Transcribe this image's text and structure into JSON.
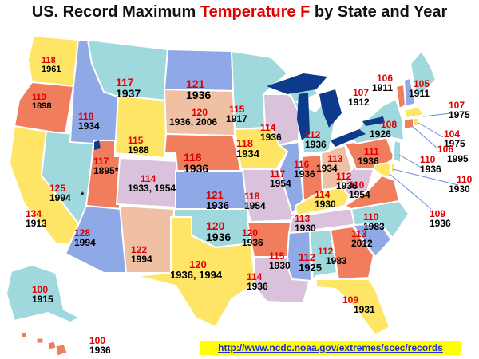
{
  "title": {
    "before": "US. Record Maximum ",
    "highlight": "Temperature F",
    "after": " by State and Year"
  },
  "url": "http://www.ncdc.noaa.gov/extremes/scec/records",
  "colors": {
    "title_highlight": "#e00000",
    "temp": "#e00000",
    "year": "#000000",
    "water": "#0d3a8a",
    "link_bg": "#ffff00",
    "link_text": "#1a2fd8"
  },
  "states": [
    {
      "id": "WA",
      "temp": "118",
      "year": "1961"
    },
    {
      "id": "OR",
      "temp": "119",
      "year": "1898"
    },
    {
      "id": "CA",
      "temp": "134",
      "year": "1913"
    },
    {
      "id": "NV",
      "temp": "125",
      "year": "1994"
    },
    {
      "id": "ID",
      "temp": "118",
      "year": "1934"
    },
    {
      "id": "MT",
      "temp": "117",
      "year": "1937"
    },
    {
      "id": "WY",
      "temp": "115",
      "year": "1988"
    },
    {
      "id": "UT",
      "temp": "117",
      "year": "1895*"
    },
    {
      "id": "AZ",
      "temp": "128",
      "year": "1994"
    },
    {
      "id": "CO",
      "temp": "114",
      "year": "1933, 1954"
    },
    {
      "id": "NM",
      "temp": "122",
      "year": "1994"
    },
    {
      "id": "ND",
      "temp": "121",
      "year": "1936"
    },
    {
      "id": "SD",
      "temp": "120",
      "year": "1936, 2006"
    },
    {
      "id": "NE",
      "temp": "118",
      "year": "1936"
    },
    {
      "id": "KS",
      "temp": "121",
      "year": "1936"
    },
    {
      "id": "OK",
      "temp": "120",
      "year": "1936"
    },
    {
      "id": "TX",
      "temp": "120",
      "year": "1936, 1994"
    },
    {
      "id": "MN",
      "temp": "115",
      "year": "1917"
    },
    {
      "id": "IA",
      "temp": "118",
      "year": "1934"
    },
    {
      "id": "MO",
      "temp": "118",
      "year": "1954"
    },
    {
      "id": "AR",
      "temp": "120",
      "year": "1936"
    },
    {
      "id": "LA",
      "temp": "114",
      "year": "1936"
    },
    {
      "id": "WI",
      "temp": "114",
      "year": "1936"
    },
    {
      "id": "IL",
      "temp": "117",
      "year": "1954"
    },
    {
      "id": "MI",
      "temp": "112",
      "year": "1936"
    },
    {
      "id": "IN",
      "temp": "116",
      "year": "1936"
    },
    {
      "id": "OH",
      "temp": "113",
      "year": "1934"
    },
    {
      "id": "KY",
      "temp": "114",
      "year": "1930"
    },
    {
      "id": "TN",
      "temp": "113",
      "year": "1930"
    },
    {
      "id": "MS",
      "temp": "115",
      "year": "1930"
    },
    {
      "id": "AL",
      "temp": "112",
      "year": "1925"
    },
    {
      "id": "GA",
      "temp": "112",
      "year": "1983"
    },
    {
      "id": "FL",
      "temp": "109",
      "year": "1931"
    },
    {
      "id": "SC",
      "temp": "113",
      "year": "2012"
    },
    {
      "id": "NC",
      "temp": "110",
      "year": "1983"
    },
    {
      "id": "VA",
      "temp": "110",
      "year": "1954"
    },
    {
      "id": "WV",
      "temp": "112",
      "year": "1936"
    },
    {
      "id": "PA",
      "temp": "111",
      "year": "1936"
    },
    {
      "id": "NY",
      "temp": "108",
      "year": "1926"
    },
    {
      "id": "VT",
      "temp": "107",
      "year": "1912"
    },
    {
      "id": "NH",
      "temp": "106",
      "year": "1911"
    },
    {
      "id": "ME",
      "temp": "105",
      "year": "1911"
    },
    {
      "id": "MA",
      "temp": "107",
      "year": "1975"
    },
    {
      "id": "RI",
      "temp": "104",
      "year": "1975"
    },
    {
      "id": "CT",
      "temp": "106",
      "year": "1995"
    },
    {
      "id": "NJ",
      "temp": "110",
      "year": "1936"
    },
    {
      "id": "DE",
      "temp": "110",
      "year": "1930"
    },
    {
      "id": "MD",
      "temp": "109",
      "year": "1936"
    },
    {
      "id": "AK",
      "temp": "100",
      "year": "1915"
    },
    {
      "id": "HI",
      "temp": "100",
      "year": "1936"
    }
  ],
  "notes": {
    "nv_asterisk": "*"
  }
}
